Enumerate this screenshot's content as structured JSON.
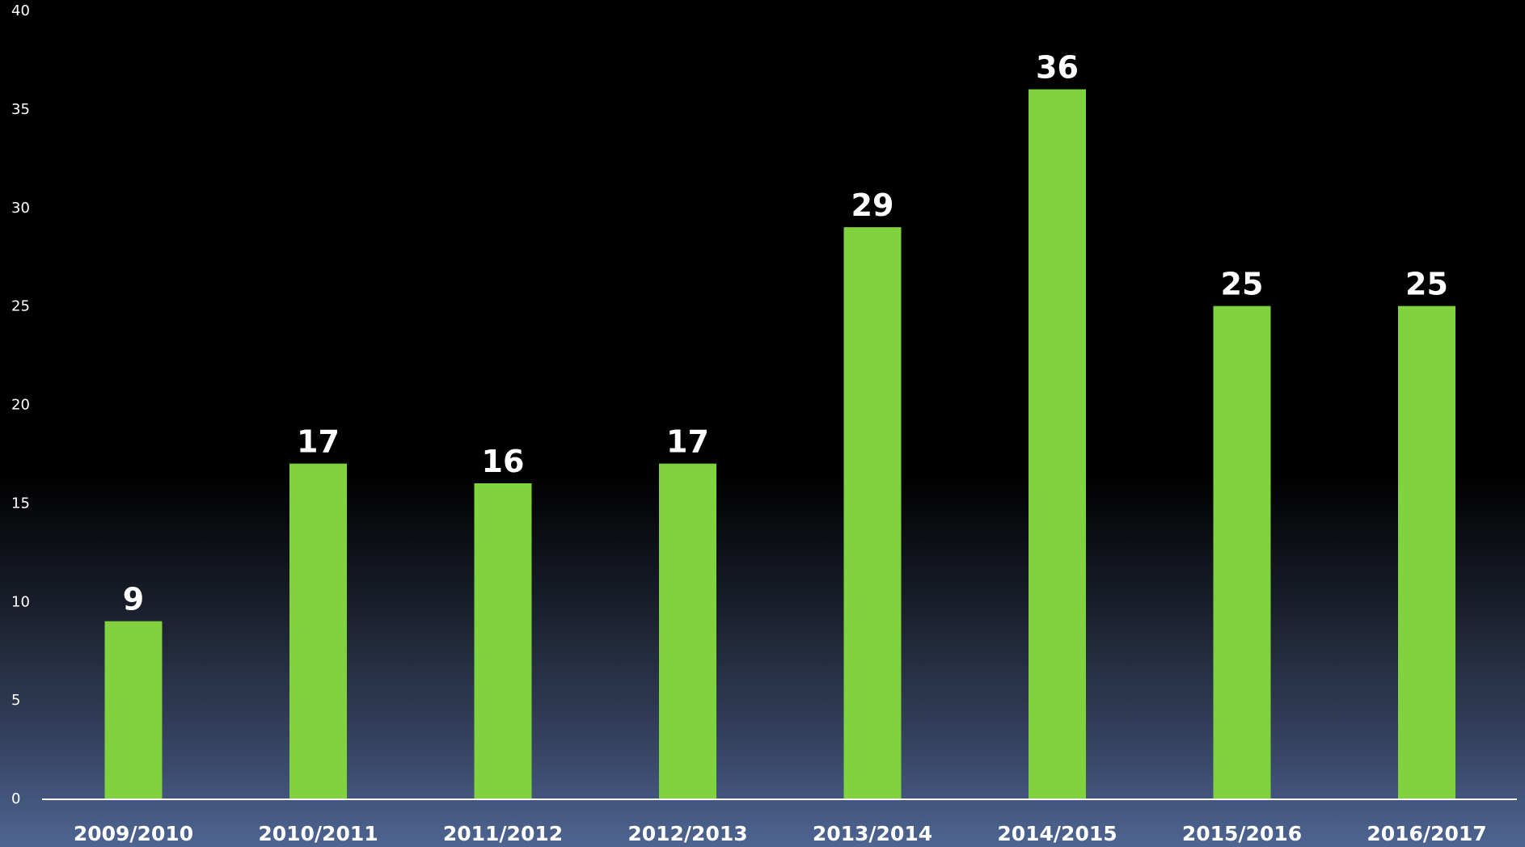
{
  "chart_data": {
    "type": "bar",
    "categories": [
      "2009/2010",
      "2010/2011",
      "2011/2012",
      "2012/2013",
      "2013/2014",
      "2014/2015",
      "2015/2016",
      "2016/2017"
    ],
    "values": [
      9,
      17,
      16,
      17,
      29,
      36,
      25,
      25
    ],
    "ylim": [
      0,
      40
    ],
    "yticks": [
      0,
      5,
      10,
      15,
      20,
      25,
      30,
      35,
      40
    ],
    "grid": false,
    "bar_color": "#80d23e",
    "axis_color": "#ffffff",
    "text_color": "#ffffff",
    "background_top": "#000000",
    "background_bottom": "#4e6592"
  }
}
